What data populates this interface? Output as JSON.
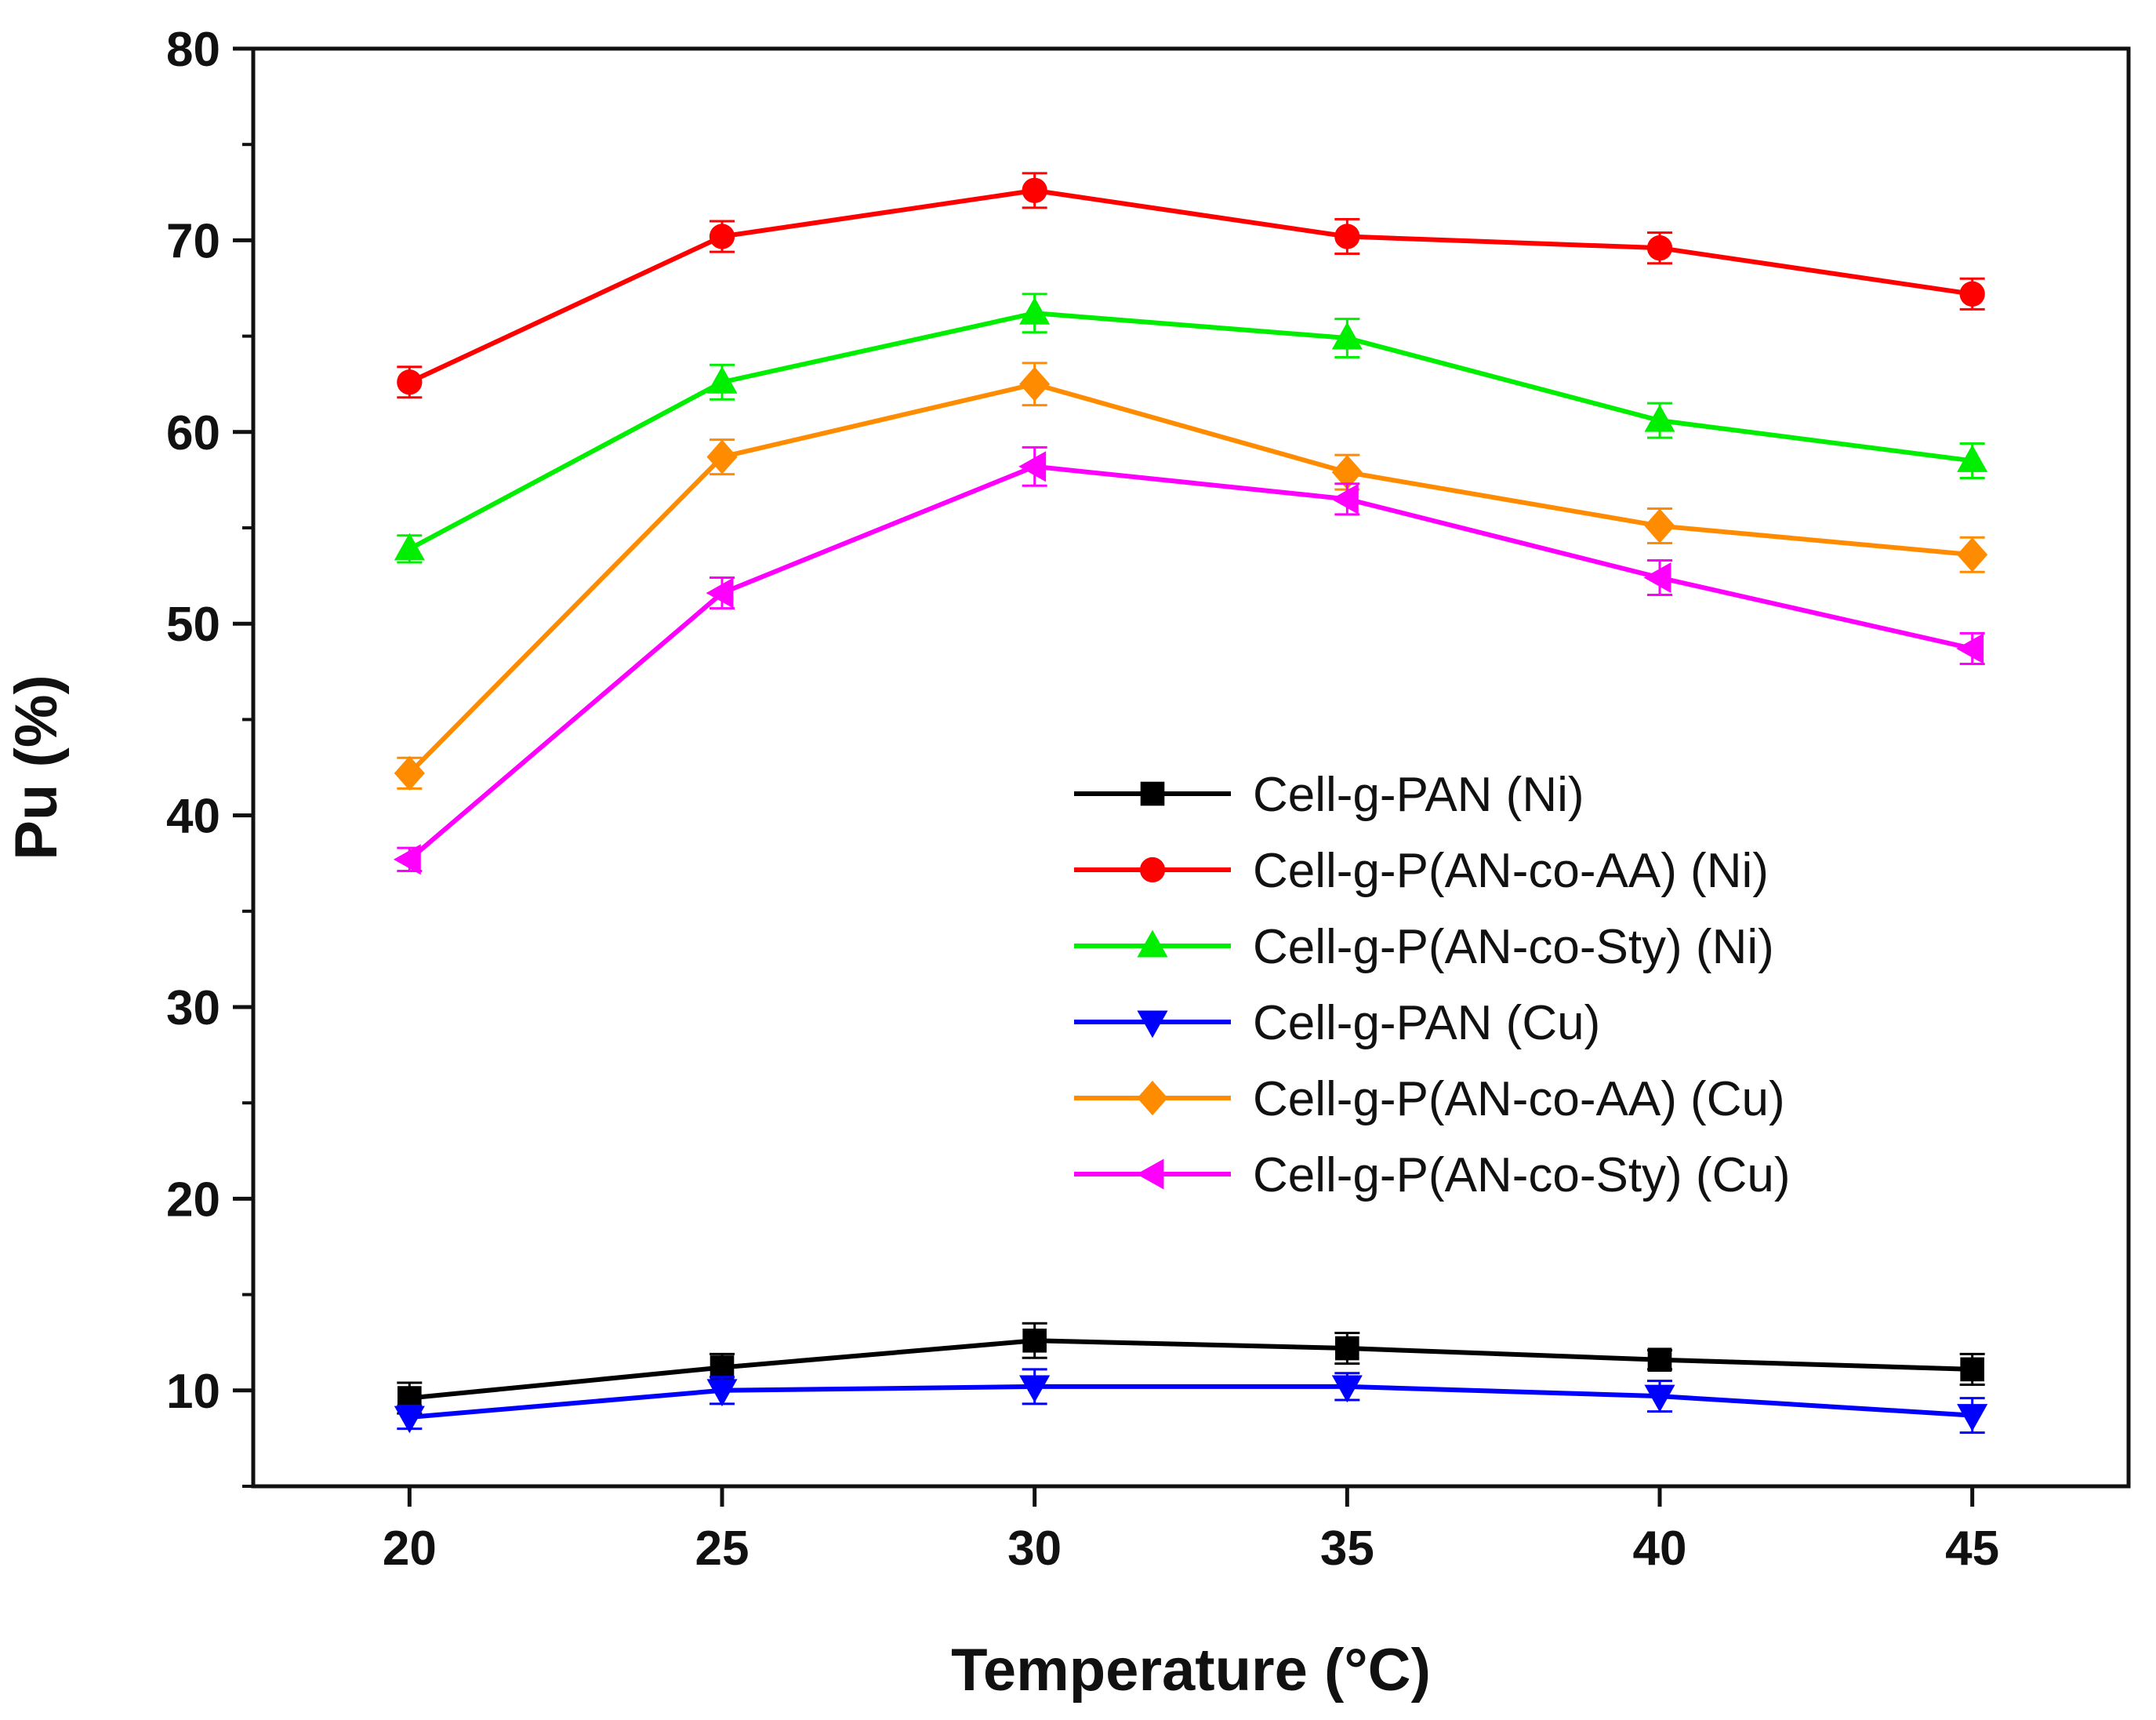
{
  "chart_data": {
    "type": "line",
    "xlabel": "Temperature (°C)",
    "ylabel": "Pu (%)",
    "xlim": [
      17.5,
      47.5
    ],
    "ylim": [
      5,
      80
    ],
    "x_ticks": [
      20,
      25,
      30,
      35,
      40,
      45
    ],
    "y_ticks": [
      10,
      20,
      30,
      40,
      50,
      60,
      70,
      80
    ],
    "x": [
      20,
      25,
      30,
      35,
      40,
      45
    ],
    "legend_position": "center-right",
    "grid": false,
    "error_bars": true,
    "series": [
      {
        "name": "Cell-g-PAN (Ni)",
        "color": "#000000",
        "marker": "square",
        "values": [
          9.6,
          11.2,
          12.6,
          12.2,
          11.6,
          11.1
        ],
        "errors": [
          0.8,
          0.7,
          0.9,
          0.8,
          0.5,
          0.8
        ]
      },
      {
        "name": "Cell-g-P(AN-co-AA) (Ni)",
        "color": "#ff0000",
        "marker": "circle",
        "values": [
          62.6,
          70.2,
          72.6,
          70.2,
          69.6,
          67.2
        ],
        "errors": [
          0.8,
          0.8,
          0.9,
          0.9,
          0.8,
          0.8
        ]
      },
      {
        "name": "Cell-g-P(AN-co-Sty) (Ni)",
        "color": "#00ee00",
        "marker": "triangle-up",
        "values": [
          53.9,
          62.6,
          66.2,
          64.9,
          60.6,
          58.5
        ],
        "errors": [
          0.7,
          0.9,
          1.0,
          1.0,
          0.9,
          0.9
        ]
      },
      {
        "name": "Cell-g-PAN (Cu)",
        "color": "#0000ff",
        "marker": "triangle-down",
        "values": [
          8.6,
          10.0,
          10.2,
          10.2,
          9.7,
          8.7
        ],
        "errors": [
          0.6,
          0.7,
          0.9,
          0.7,
          0.8,
          0.9
        ]
      },
      {
        "name": "Cell-g-P(AN-co-AA) (Cu)",
        "color": "#ff8c00",
        "marker": "diamond",
        "values": [
          42.2,
          58.7,
          62.5,
          57.9,
          55.1,
          53.6
        ],
        "errors": [
          0.8,
          0.9,
          1.1,
          0.9,
          0.9,
          0.9
        ]
      },
      {
        "name": "Cell-g-P(AN-co-Sty) (Cu)",
        "color": "#ff00ff",
        "marker": "triangle-left",
        "values": [
          37.7,
          51.6,
          58.2,
          56.5,
          52.4,
          48.7
        ],
        "errors": [
          0.6,
          0.8,
          1.0,
          0.8,
          0.9,
          0.8
        ]
      }
    ]
  }
}
